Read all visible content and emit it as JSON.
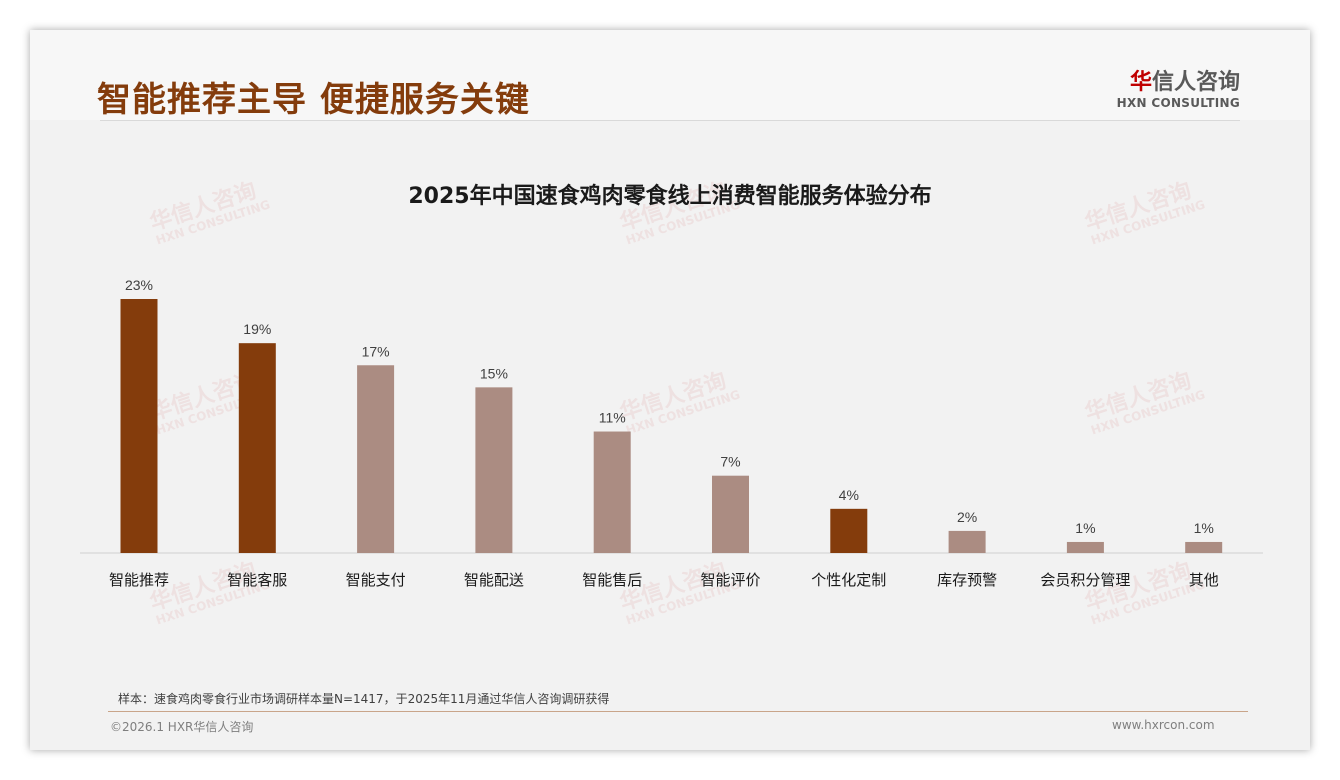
{
  "header": {
    "title": "智能推荐主导 便捷服务关键",
    "logo_cn_mark": "华",
    "logo_cn_rest": "信人咨询",
    "logo_en": "HXN CONSULTING"
  },
  "watermark": "华信人咨询 HXN CONSULTING",
  "chart_data": {
    "type": "bar",
    "title": "2025年中国速食鸡肉零食线上消费智能服务体验分布",
    "categories": [
      "智能推荐",
      "智能客服",
      "智能支付",
      "智能配送",
      "智能售后",
      "智能评价",
      "个性化定制",
      "库存预警",
      "会员积分管理",
      "其他"
    ],
    "values": [
      23,
      19,
      17,
      15,
      11,
      7,
      4,
      2,
      1,
      1
    ],
    "labels": [
      "23%",
      "19%",
      "17%",
      "15%",
      "11%",
      "7%",
      "4%",
      "2%",
      "1%",
      "1%"
    ],
    "highlight": [
      true,
      true,
      false,
      false,
      false,
      false,
      true,
      false,
      false,
      false
    ],
    "colors": {
      "highlight": "#843c0c",
      "normal": "#ab8c82"
    },
    "ylim": [
      0,
      23
    ],
    "xlabel": "",
    "ylabel": "",
    "grid": false
  },
  "footer": {
    "note": "样本：速食鸡肉零食行业市场调研样本量N=1417，于2025年11月通过华信人咨询调研获得",
    "copyright": "©2026.1 HXR华信人咨询",
    "url": "www.hxrcon.com"
  }
}
